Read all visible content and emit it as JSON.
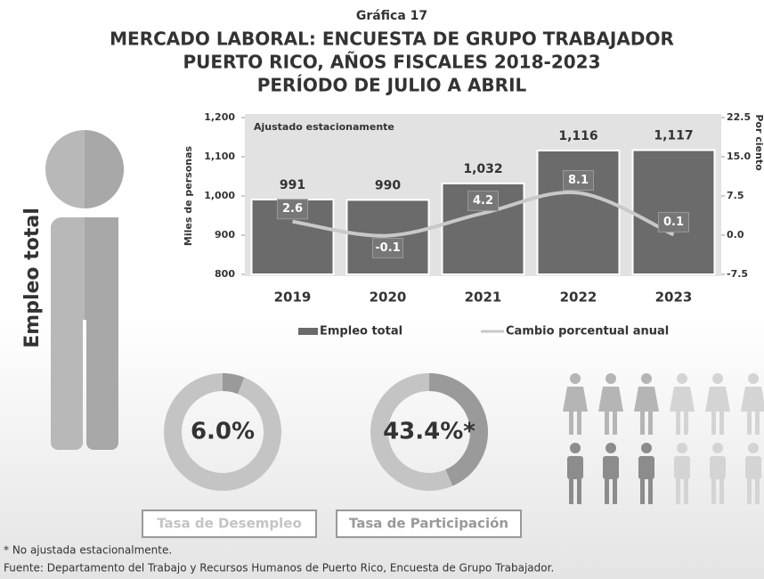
{
  "header": {
    "label": "Gráfica 17",
    "title_lines": [
      "MERCADO LABORAL: ENCUESTA DE GRUPO TRABAJADOR",
      "PUERTO RICO, AÑOS FISCALES 2018-2023",
      "PERÍODO DE JULIO A ABRIL"
    ]
  },
  "side_label": "Empleo total",
  "chart_data": {
    "type": "combo",
    "annotation": "Ajustado estacionamente",
    "y_label": "Miles de personas",
    "y2_label": "Por ciento",
    "categories": [
      "2019",
      "2020",
      "2021",
      "2022",
      "2023"
    ],
    "series": [
      {
        "name": "Empleo total",
        "color": "#6b6b6b",
        "values": [
          991,
          990,
          1032,
          1116,
          1117
        ],
        "value_labels": [
          "991",
          "990",
          "1,032",
          "1,116",
          "1,117"
        ]
      },
      {
        "name": "Cambio porcentual anual",
        "color": "#c9c9c9",
        "axis": "y2",
        "values": [
          2.6,
          -0.1,
          4.2,
          8.1,
          0.1
        ]
      }
    ],
    "ylim": [
      800,
      1200
    ],
    "yticks": [
      800,
      900,
      {
        "value": 1000,
        "label": "1,000"
      },
      {
        "value": 1100,
        "label": "1,100"
      },
      {
        "value": 1200,
        "label": "1,200"
      }
    ],
    "y2lim": [
      -7.5,
      22.5
    ],
    "y2ticks": [
      -7.5,
      {
        "value": 0,
        "label": "0.0"
      },
      7.5,
      {
        "value": 15,
        "label": "15.0"
      },
      22.5
    ]
  },
  "indicators": [
    {
      "value": 6.0,
      "value_label": "6.0%",
      "caption": "Tasa de Desempleo"
    },
    {
      "value": 43.4,
      "value_label": "43.4%*",
      "caption": "Tasa de Participación"
    }
  ],
  "footnotes": [
    "* No ajustada estacionalmente.",
    "Fuente: Departamento del Trabajo y Recursos Humanos de Puerto Rico, Encuesta de Grupo Trabajador."
  ]
}
